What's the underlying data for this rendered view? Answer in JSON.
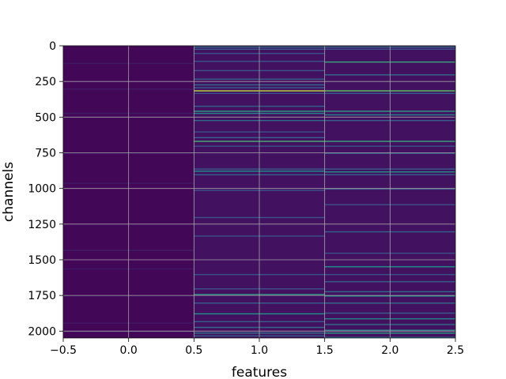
{
  "chart_data": {
    "type": "heatmap",
    "xlabel": "features",
    "ylabel": "channels",
    "xlim": [
      -0.5,
      2.5
    ],
    "ylim": [
      2048,
      0
    ],
    "y_inverted": true,
    "x_ticks": [
      -0.5,
      0.0,
      0.5,
      1.0,
      1.5,
      2.0,
      2.5
    ],
    "x_tick_labels": [
      "−0.5",
      "0.0",
      "0.5",
      "1.0",
      "1.5",
      "2.0",
      "2.5"
    ],
    "y_ticks": [
      0,
      250,
      500,
      750,
      1000,
      1250,
      1500,
      1750,
      2000
    ],
    "y_tick_labels": [
      "0",
      "250",
      "500",
      "750",
      "1000",
      "1250",
      "1500",
      "1750",
      "2000"
    ],
    "grid": true,
    "colormap": "viridis",
    "columns": [
      {
        "feature": 0,
        "base_value": 0.02,
        "highlight_channels": [
          {
            "channel": 120,
            "value": 0.07
          },
          {
            "channel": 300,
            "value": 0.08
          },
          {
            "channel": 470,
            "value": 0.08
          },
          {
            "channel": 750,
            "value": 0.07
          },
          {
            "channel": 960,
            "value": 0.07
          },
          {
            "channel": 1430,
            "value": 0.08
          },
          {
            "channel": 1560,
            "value": 0.07
          },
          {
            "channel": 1750,
            "value": 0.07
          },
          {
            "channel": 1940,
            "value": 0.08
          },
          {
            "channel": 2000,
            "value": 0.07
          }
        ]
      },
      {
        "feature": 1,
        "base_value": 0.05,
        "highlight_channels": [
          {
            "channel": 5,
            "value": 0.35
          },
          {
            "channel": 20,
            "value": 0.3
          },
          {
            "channel": 50,
            "value": 0.25
          },
          {
            "channel": 105,
            "value": 0.25
          },
          {
            "channel": 170,
            "value": 0.25
          },
          {
            "channel": 230,
            "value": 0.3
          },
          {
            "channel": 270,
            "value": 0.35
          },
          {
            "channel": 290,
            "value": 0.3
          },
          {
            "channel": 312,
            "value": 0.9
          },
          {
            "channel": 330,
            "value": 0.25
          },
          {
            "channel": 420,
            "value": 0.3
          },
          {
            "channel": 455,
            "value": 0.55
          },
          {
            "channel": 470,
            "value": 0.45
          },
          {
            "channel": 520,
            "value": 0.35
          },
          {
            "channel": 600,
            "value": 0.25
          },
          {
            "channel": 640,
            "value": 0.3
          },
          {
            "channel": 666,
            "value": 0.65
          },
          {
            "channel": 700,
            "value": 0.25
          },
          {
            "channel": 860,
            "value": 0.3
          },
          {
            "channel": 875,
            "value": 0.5
          },
          {
            "channel": 900,
            "value": 0.3
          },
          {
            "channel": 1010,
            "value": 0.25
          },
          {
            "channel": 1200,
            "value": 0.25
          },
          {
            "channel": 1330,
            "value": 0.25
          },
          {
            "channel": 1600,
            "value": 0.25
          },
          {
            "channel": 1700,
            "value": 0.25
          },
          {
            "channel": 1740,
            "value": 0.55
          },
          {
            "channel": 1800,
            "value": 0.3
          },
          {
            "channel": 1875,
            "value": 0.5
          },
          {
            "channel": 1930,
            "value": 0.3
          },
          {
            "channel": 1970,
            "value": 0.35
          },
          {
            "channel": 2010,
            "value": 0.4
          },
          {
            "channel": 2030,
            "value": 0.3
          }
        ]
      },
      {
        "feature": 2,
        "base_value": 0.05,
        "highlight_channels": [
          {
            "channel": 5,
            "value": 0.35
          },
          {
            "channel": 20,
            "value": 0.25
          },
          {
            "channel": 110,
            "value": 0.6
          },
          {
            "channel": 200,
            "value": 0.35
          },
          {
            "channel": 312,
            "value": 0.75
          },
          {
            "channel": 330,
            "value": 0.3
          },
          {
            "channel": 455,
            "value": 0.55
          },
          {
            "channel": 480,
            "value": 0.45
          },
          {
            "channel": 520,
            "value": 0.3
          },
          {
            "channel": 666,
            "value": 0.6
          },
          {
            "channel": 700,
            "value": 0.25
          },
          {
            "channel": 750,
            "value": 0.3
          },
          {
            "channel": 860,
            "value": 0.3
          },
          {
            "channel": 880,
            "value": 0.5
          },
          {
            "channel": 900,
            "value": 0.3
          },
          {
            "channel": 1000,
            "value": 0.3
          },
          {
            "channel": 1110,
            "value": 0.25
          },
          {
            "channel": 1300,
            "value": 0.3
          },
          {
            "channel": 1450,
            "value": 0.25
          },
          {
            "channel": 1545,
            "value": 0.5
          },
          {
            "channel": 1600,
            "value": 0.25
          },
          {
            "channel": 1650,
            "value": 0.3
          },
          {
            "channel": 1720,
            "value": 0.35
          },
          {
            "channel": 1750,
            "value": 0.5
          },
          {
            "channel": 1800,
            "value": 0.35
          },
          {
            "channel": 1870,
            "value": 0.3
          },
          {
            "channel": 1910,
            "value": 0.45
          },
          {
            "channel": 1950,
            "value": 0.35
          },
          {
            "channel": 1990,
            "value": 0.45
          },
          {
            "channel": 2010,
            "value": 0.55
          },
          {
            "channel": 2040,
            "value": 0.35
          }
        ]
      }
    ]
  }
}
